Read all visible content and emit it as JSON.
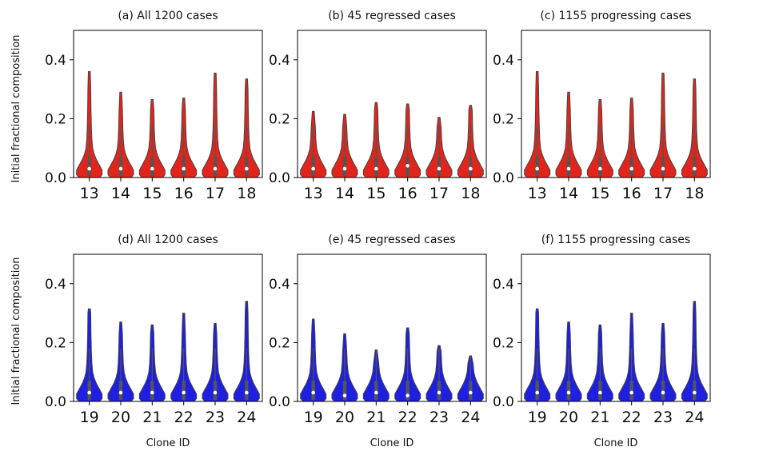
{
  "figure": {
    "ylabel": "Initial fractional composition",
    "xlabel": "Clone ID"
  },
  "chart_data": [
    {
      "type": "violin",
      "title": "(a) All 1200 cases",
      "categories": [
        "13",
        "14",
        "15",
        "16",
        "17",
        "18"
      ],
      "series": [
        {
          "color": "#e3241b",
          "medians": [
            0.03,
            0.03,
            0.03,
            0.03,
            0.03,
            0.03
          ],
          "maxima": [
            0.36,
            0.29,
            0.265,
            0.27,
            0.355,
            0.335
          ]
        }
      ],
      "ylim": [
        0,
        0.5
      ],
      "yticks": [
        0.0,
        0.2,
        0.4
      ],
      "ytick_labels": [
        "0.0",
        "0.2",
        "0.4"
      ],
      "ylabel": "Initial fractional composition",
      "xlabel": ""
    },
    {
      "type": "violin",
      "title": "(b) 45 regressed cases",
      "categories": [
        "13",
        "14",
        "15",
        "16",
        "17",
        "18"
      ],
      "series": [
        {
          "color": "#e3241b",
          "medians": [
            0.03,
            0.03,
            0.03,
            0.04,
            0.03,
            0.03
          ],
          "maxima": [
            0.225,
            0.215,
            0.255,
            0.25,
            0.205,
            0.245
          ]
        }
      ],
      "ylim": [
        0,
        0.5
      ],
      "yticks": [
        0.0,
        0.2,
        0.4
      ],
      "ytick_labels": [
        "0.0",
        "0.2",
        "0.4"
      ],
      "ylabel": "",
      "xlabel": ""
    },
    {
      "type": "violin",
      "title": "(c) 1155 progressing cases",
      "categories": [
        "13",
        "14",
        "15",
        "16",
        "17",
        "18"
      ],
      "series": [
        {
          "color": "#e3241b",
          "medians": [
            0.03,
            0.03,
            0.03,
            0.03,
            0.03,
            0.03
          ],
          "maxima": [
            0.36,
            0.29,
            0.265,
            0.27,
            0.355,
            0.335
          ]
        }
      ],
      "ylim": [
        0,
        0.5
      ],
      "yticks": [
        0.0,
        0.2,
        0.4
      ],
      "ytick_labels": [
        "0.0",
        "0.2",
        "0.4"
      ],
      "ylabel": "",
      "xlabel": ""
    },
    {
      "type": "violin",
      "title": "(d) All 1200 cases",
      "categories": [
        "19",
        "20",
        "21",
        "22",
        "23",
        "24"
      ],
      "series": [
        {
          "color": "#1f1fe0",
          "medians": [
            0.03,
            0.03,
            0.03,
            0.03,
            0.03,
            0.03
          ],
          "maxima": [
            0.315,
            0.27,
            0.26,
            0.3,
            0.265,
            0.34
          ]
        }
      ],
      "ylim": [
        0,
        0.5
      ],
      "yticks": [
        0.0,
        0.2,
        0.4
      ],
      "ytick_labels": [
        "0.0",
        "0.2",
        "0.4"
      ],
      "ylabel": "Initial fractional composition",
      "xlabel": "Clone ID"
    },
    {
      "type": "violin",
      "title": "(e) 45 regressed cases",
      "categories": [
        "19",
        "20",
        "21",
        "22",
        "23",
        "24"
      ],
      "series": [
        {
          "color": "#1f1fe0",
          "medians": [
            0.03,
            0.02,
            0.03,
            0.02,
            0.03,
            0.03
          ],
          "maxima": [
            0.28,
            0.23,
            0.175,
            0.25,
            0.19,
            0.155
          ]
        }
      ],
      "ylim": [
        0,
        0.5
      ],
      "yticks": [
        0.0,
        0.2,
        0.4
      ],
      "ytick_labels": [
        "0.0",
        "0.2",
        "0.4"
      ],
      "ylabel": "",
      "xlabel": "Clone ID"
    },
    {
      "type": "violin",
      "title": "(f) 1155 progressing cases",
      "categories": [
        "19",
        "20",
        "21",
        "22",
        "23",
        "24"
      ],
      "series": [
        {
          "color": "#1f1fe0",
          "medians": [
            0.03,
            0.03,
            0.03,
            0.03,
            0.03,
            0.03
          ],
          "maxima": [
            0.315,
            0.27,
            0.26,
            0.3,
            0.265,
            0.34
          ]
        }
      ],
      "ylim": [
        0,
        0.5
      ],
      "yticks": [
        0.0,
        0.2,
        0.4
      ],
      "ytick_labels": [
        "0.0",
        "0.2",
        "0.4"
      ],
      "ylabel": "",
      "xlabel": "Clone ID"
    }
  ]
}
